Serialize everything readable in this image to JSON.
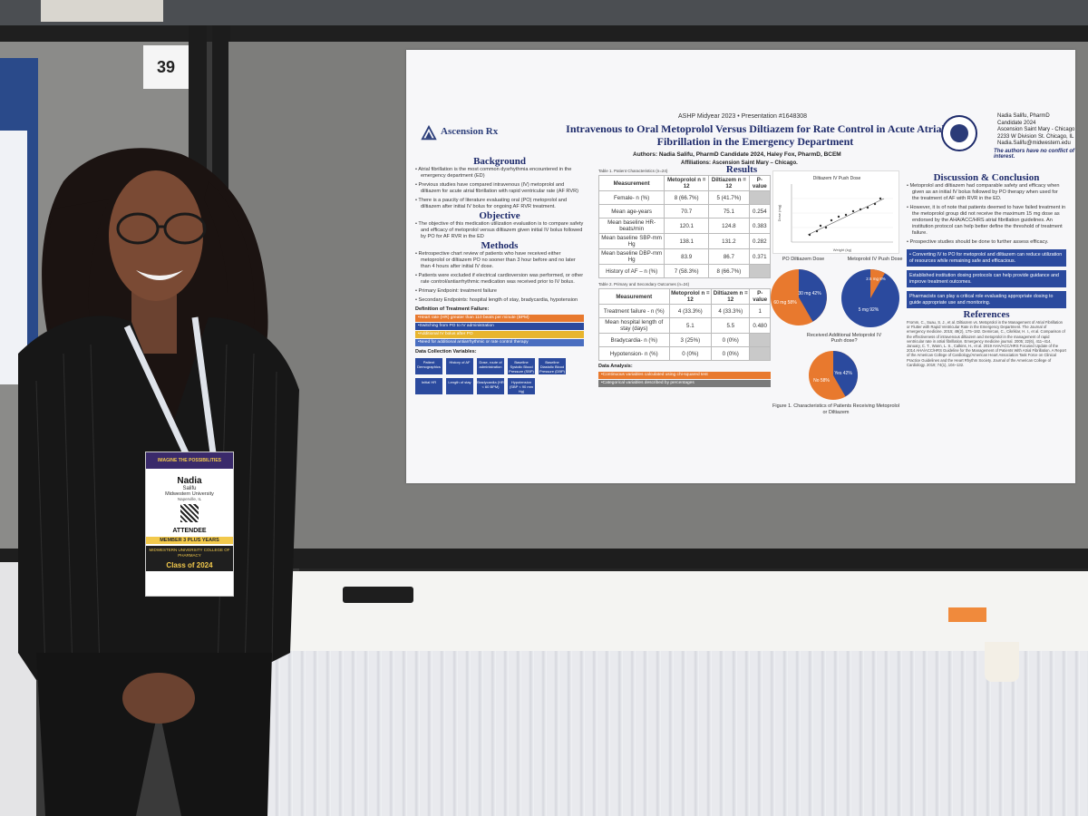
{
  "board_number": "39",
  "poster": {
    "conference": "ASHP Midyear 2023 • Presentation #1648308",
    "logo": "Ascension Rx",
    "title": "Intravenous to Oral Metoprolol Versus Diltiazem for Rate Control in Acute Atrial Fibrillation in the Emergency Department",
    "authors": "Authors: Nadia Salifu, PharmD Candidate 2024, Haley Fox, PharmD, BCEM",
    "affiliations": "Affiliations: Ascension Saint Mary – Chicago.",
    "contact": [
      "Nadia Salifu, PharmD Candidate 2024",
      "Ascension Saint Mary - Chicago",
      "2233 W Division St. Chicago, IL",
      "Nadia.Salifu@midwestern.edu"
    ],
    "conflict": "The authors have no conflict of interest.",
    "background": {
      "heading": "Background",
      "bullets": [
        "Atrial fibrillation is the most common dysrhythmia encountered in the emergency department (ED)",
        "Previous studies have compared intravenous (IV) metoprolol and diltiazem for acute atrial fibrillation with rapid ventricular rate (AF RVR)",
        "There is a paucity of literature evaluating oral (PO) metoprolol and diltiazem after initial IV bolus for ongoing AF RVR treatment."
      ]
    },
    "objective": {
      "heading": "Objective",
      "text": "The objective of this medication utilization evaluation is to compare safety and efficacy of metoprolol versus diltiazem given initial IV bolus followed by PO for AF RVR in the ED"
    },
    "methods": {
      "heading": "Methods",
      "bullets": [
        "Retrospective chart review of patients who have received either metoprolol or diltiazem PO no sooner than 3 hour before and no later than 4 hours after initial IV dose.",
        "Patients were excluded if electrical cardioversion was performed, or other rate control/antiarrhythmic medication was received prior to IV bolus.",
        "Primary Endpoint: treatment failure",
        "Secondary Endpoints: hospital length of stay, bradycardia, hypotension"
      ],
      "failure_heading": "Definition of Treatment Failure:",
      "failure_items": [
        {
          "text": "Heart rate (HR) greater than 110 beats per minute (BPM)",
          "color": "#e8792e"
        },
        {
          "text": "Switching from PO to IV administration",
          "color": "#2b4a9e"
        },
        {
          "text": "Additional IV bolus after PO",
          "color": "#e8b52e"
        },
        {
          "text": "Need for additional antiarrhythmic or rate control therapy",
          "color": "#4a6ec0"
        }
      ],
      "dc_heading": "Data Collection Variables:",
      "dc_items": [
        "Patient Demographics",
        "History of AF",
        "Dose, route of administration",
        "Baseline Systolic Blood Pressure (SBP)",
        "Baseline Diastolic Blood Pressure (DBP)",
        "Initial HR",
        "Length of stay",
        "Bradycardia (HR < 60 BPM)",
        "Hypotension (SBP < 90 mm Hg)"
      ]
    },
    "results": {
      "heading": "Results",
      "table1_caption": "Table 1. Patient Characteristics (n=24)",
      "table1_headers": [
        "Measurement",
        "Metoprolol n = 12",
        "Diltiazem n = 12",
        "P-value"
      ],
      "table1_rows": [
        [
          "Female- n (%)",
          "8 (66.7%)",
          "5 (41.7%)",
          ""
        ],
        [
          "Mean age-years",
          "70.7",
          "75.1",
          "0.254"
        ],
        [
          "Mean baseline HR-beats/min",
          "120.1",
          "124.8",
          "0.383"
        ],
        [
          "Mean baseline SBP-mm Hg",
          "138.1",
          "131.2",
          "0.282"
        ],
        [
          "Mean baseline DBP-mm Hg",
          "83.9",
          "86.7",
          "0.371"
        ],
        [
          "History of AF – n (%)",
          "7 (58.3%)",
          "8 (66.7%)",
          ""
        ]
      ],
      "table2_caption": "Table 2. Primary and Secondary Outcomes (n=24)",
      "table2_headers": [
        "Measurement",
        "Metoprolol n = 12",
        "Diltiazem n = 12",
        "P-value"
      ],
      "table2_rows": [
        [
          "Treatment failure - n (%)",
          "4 (33.3%)",
          "4 (33.3%)",
          "1"
        ],
        [
          "Mean hospital length of stay (days)",
          "5.1",
          "5.5",
          "0.480"
        ],
        [
          "Bradycardia- n (%)",
          "3 (25%)",
          "0 (0%)",
          ""
        ],
        [
          "Hypotension- n (%)",
          "0 (0%)",
          "0 (0%)",
          ""
        ]
      ],
      "analysis_heading": "Data Analysis:",
      "analysis_items": [
        {
          "text": "Continuous variables calculated using chi-squared test",
          "color": "#e8792e"
        },
        {
          "text": "Categorical variables described by percentages",
          "color": "#7a7a7a"
        }
      ],
      "scatter_title": "Diltiazem IV Push Dose",
      "scatter_xlabel": "Weight (kg)",
      "scatter_ylabel": "Dose (mg)",
      "pie1_title": "PO Diltiazem Dose",
      "pie1_labels": [
        "30 mg 42%",
        "60 mg 58%"
      ],
      "pie2_title": "Metoprolol IV Push Dose",
      "pie2_labels": [
        "2.5 mg 8%",
        "5 mg 92%"
      ],
      "pie3_title": "Received Additional Metoprolol IV Push dose?",
      "pie3_labels": [
        "Yes 42%",
        "No 58%"
      ],
      "figure_caption": "Figure 1. Characteristics of Patients Receiving Metoprolol or Diltiazem"
    },
    "discussion": {
      "heading": "Discussion & Conclusion",
      "bullets": [
        "Metoprolol and diltiazem had comparable safety and efficacy when given as an initial IV bolus followed by PO therapy when used for the treatment of AF with RVR in the ED.",
        "However, it is of note that patients deemed to have failed treatment in the metoprolol group did not receive the maximum 15 mg dose as endorsed by the AHA/ACC/HRS atrial fibrillation guidelines. An institution protocol can help better define the threshold of treatment failure.",
        "Prospective studies should be done to further assess efficacy."
      ],
      "boxes": [
        "Converting IV to PO for metoprolol and diltiazem can reduce utilization of resources while remaining safe and efficacious.",
        "Established institution dosing protocols can help provide guidance and improve treatment outcomes.",
        "Pharmacists can play a critical role evaluating appropriate dosing to guide appropriate use and monitoring."
      ]
    },
    "references": {
      "heading": "References",
      "text": "Fromm, C., Suau, S. J., et al. Diltiazem vs. Metoprolol in the Management of Atrial Fibrillation or Flutter with Rapid Ventricular Rate in the Emergency Department. The Journal of emergency medicine. 2015; 49(2), 175–182. Demircan, C., Cikriklar, H. I., et al. Comparison of the effectiveness of intravenous diltiazem and metoprolol in the management of rapid ventricular rate in atrial fibrillation. Emergency medicine journal. 2005; 22(6), 411–414. January, C. T., Wann, L. S., Calkins, H., et al. 2019 AHA/ACC/HRS Focused Update of the 2014 AHA/ACC/HRS Guideline for the Management of Patients With Atrial Fibrillation. A Report of the American College of Cardiology/American Heart Association Task Force on Clinical Practice Guidelines and the Heart Rhythm Society. Journal of the American College of Cardiology. 2019; 74(1), 104–132."
    }
  },
  "badge": {
    "name": "Nadia",
    "surname": "Salifu",
    "org": "Midwestern University",
    "city": "Naperville, IL",
    "role": "ATTENDEE",
    "member": "MEMBER 3 PLUS YEARS",
    "school": "MIDWESTERN UNIVERSITY COLLEGE OF PHARMACY",
    "class": "Class of 2024",
    "banner": "IMAGINE THE POSSIBILITIES"
  }
}
